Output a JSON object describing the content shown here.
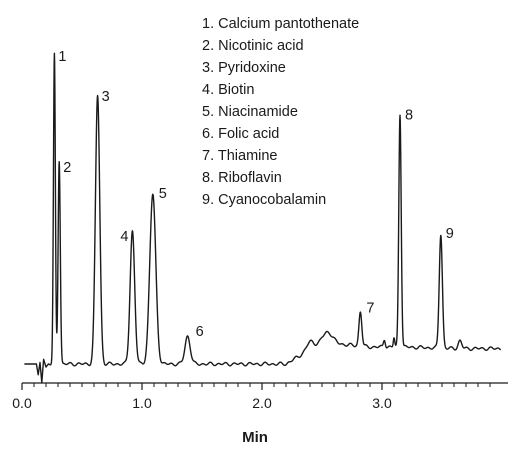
{
  "chart_data": {
    "type": "line",
    "xlabel": "Min",
    "ylabel": "",
    "title": "",
    "xlim": [
      0.0,
      4.0
    ],
    "ylim": [
      0,
      100
    ],
    "grid": false,
    "legend_placement": "top-center",
    "x_ticks": [
      "0.0",
      "1.0",
      "2.0",
      "3.0"
    ],
    "x_tick_values": [
      0.0,
      1.0,
      2.0,
      3.0
    ],
    "line_color": "#1a1a1a",
    "legend": [
      "1. Calcium pantothenate",
      "2. Nicotinic acid",
      "3. Pyridoxine",
      "4. Biotin",
      "5. Niacinamide",
      "6. Folic acid",
      "7. Thiamine",
      "8. Riboflavin",
      "9. Cyanocobalamin"
    ],
    "peaks": [
      {
        "label": "1",
        "x": 0.27,
        "y": 100
      },
      {
        "label": "2",
        "x": 0.31,
        "y": 66
      },
      {
        "label": "3",
        "x": 0.63,
        "y": 87
      },
      {
        "label": "4",
        "x": 0.92,
        "y": 43
      },
      {
        "label": "5",
        "x": 1.09,
        "y": 55
      },
      {
        "label": "6",
        "x": 1.38,
        "y": 9
      },
      {
        "label": "7",
        "x": 2.82,
        "y": 17
      },
      {
        "label": "8",
        "x": 3.15,
        "y": 81
      },
      {
        "label": "9",
        "x": 3.49,
        "y": 42
      }
    ]
  }
}
